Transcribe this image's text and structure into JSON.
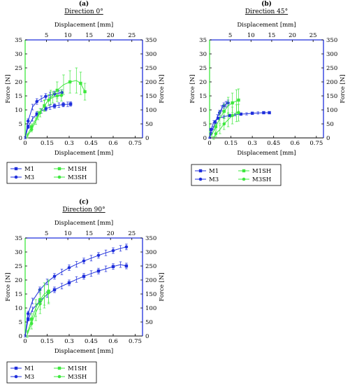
{
  "colors": {
    "blue": "#1f2fdc",
    "green": "#3ee83e"
  },
  "chart_data": [
    {
      "id": "a",
      "panel_letter": "(a)",
      "title": "Direction 0°",
      "type": "line",
      "xlabel": "Displacement [mm]",
      "ylabel": "Force [N]",
      "x2label": "Displacement [mm]",
      "xlim": [
        0,
        0.8
      ],
      "ylim": [
        0,
        35
      ],
      "x2lim": [
        0,
        27.5
      ],
      "y2lim": [
        0,
        350
      ],
      "xticks": [
        "0",
        "0.15",
        "0.3",
        "0.45",
        "0.6",
        "0.75"
      ],
      "yticks": [
        "0",
        "5",
        "10",
        "15",
        "20",
        "25",
        "30",
        "35"
      ],
      "x2ticks": [
        "5",
        "10",
        "15",
        "20",
        "25"
      ],
      "y2ticks": [
        "0",
        "50",
        "100",
        "150",
        "200",
        "250",
        "300",
        "350"
      ],
      "grid": false,
      "right_axis_color": "blue",
      "top_axis_color": "blue",
      "left_axis_color": "green",
      "series": [
        {
          "name": "M1",
          "axis": "primary",
          "color": "blue",
          "marker": "square",
          "x": [
            0,
            0.02,
            0.05,
            0.08,
            0.11,
            0.14,
            0.17,
            0.2,
            0.23,
            0.26,
            0.29,
            0.31
          ],
          "y": [
            0,
            4,
            6.8,
            8.5,
            9.6,
            10.4,
            11,
            11.4,
            11.7,
            11.9,
            12,
            12.1
          ],
          "err": [
            0.3,
            0.6,
            0.8,
            0.8,
            0.8,
            0.8,
            0.8,
            0.8,
            0.8,
            0.8,
            0.8,
            0.8
          ]
        },
        {
          "name": "M3",
          "axis": "primary",
          "color": "blue",
          "marker": "circle",
          "x": [
            0,
            0.02,
            0.05,
            0.08,
            0.11,
            0.14,
            0.17,
            0.2,
            0.23,
            0.25
          ],
          "y": [
            0,
            6,
            11,
            13,
            14,
            14.8,
            15.3,
            15.7,
            16,
            16.2
          ],
          "err": [
            0.3,
            0.8,
            1,
            1,
            1,
            1,
            1,
            1,
            1,
            1
          ]
        },
        {
          "name": "M1SH",
          "axis": "secondary",
          "color": "green",
          "marker": "square",
          "x": [
            0.5,
            1.5,
            3,
            4.5,
            6,
            7.5,
            9,
            10.5,
            12,
            13,
            14
          ],
          "y": [
            10,
            40,
            80,
            115,
            145,
            170,
            190,
            200,
            205,
            195,
            165
          ],
          "err": [
            5,
            10,
            15,
            20,
            25,
            30,
            35,
            40,
            45,
            40,
            30
          ]
        },
        {
          "name": "M3SH",
          "axis": "secondary",
          "color": "green",
          "marker": "circle",
          "x": [
            0.5,
            1.5,
            2.5,
            3.5,
            4.5,
            5.5,
            6.5,
            7.5,
            8.5
          ],
          "y": [
            5,
            30,
            60,
            90,
            115,
            135,
            145,
            150,
            152
          ],
          "err": [
            5,
            8,
            12,
            15,
            18,
            20,
            20,
            20,
            20
          ]
        }
      ],
      "legend": {
        "entries": [
          {
            "name": "M1",
            "color": "blue",
            "marker": "square"
          },
          {
            "name": "M1SH",
            "color": "green",
            "marker": "square"
          },
          {
            "name": "M3",
            "color": "blue",
            "marker": "circle"
          },
          {
            "name": "M3SH",
            "color": "green",
            "marker": "circle"
          }
        ],
        "placement": "below"
      }
    },
    {
      "id": "b",
      "panel_letter": "(b)",
      "title": "Direction 45°",
      "type": "line",
      "xlabel": "Displacement [mm]",
      "ylabel": "Force [N]",
      "x2label": "Displacement [mm]",
      "xlim": [
        0,
        0.8
      ],
      "ylim": [
        0,
        35
      ],
      "x2lim": [
        0,
        27.5
      ],
      "y2lim": [
        0,
        350
      ],
      "xticks": [
        "0",
        "0.15",
        "0.3",
        "0.45",
        "0.6",
        "0.75"
      ],
      "yticks": [
        "0",
        "5",
        "10",
        "15",
        "20",
        "25",
        "30",
        "35"
      ],
      "x2ticks": [
        "5",
        "10",
        "15",
        "20",
        "25"
      ],
      "y2ticks": [
        "0",
        "50",
        "100",
        "150",
        "200",
        "250",
        "300",
        "350"
      ],
      "grid": false,
      "right_axis_color": "blue",
      "top_axis_color": "blue",
      "left_axis_color": "green",
      "series": [
        {
          "name": "M1",
          "axis": "primary",
          "color": "blue",
          "marker": "square",
          "x": [
            0,
            0.01,
            0.03,
            0.06,
            0.1,
            0.14,
            0.18,
            0.22,
            0.26,
            0.3,
            0.34,
            0.38,
            0.42
          ],
          "y": [
            0,
            3,
            5.8,
            7,
            7.6,
            8,
            8.3,
            8.5,
            8.6,
            8.8,
            8.9,
            9,
            9
          ],
          "err": [
            0.2,
            0.3,
            0.4,
            0.4,
            0.4,
            0.4,
            0.4,
            0.4,
            0.4,
            0.4,
            0.4,
            0.4,
            0.4
          ]
        },
        {
          "name": "M3",
          "axis": "primary",
          "color": "blue",
          "marker": "circle",
          "x": [
            0,
            0.01,
            0.025,
            0.04,
            0.055,
            0.07,
            0.085,
            0.1,
            0.115,
            0.13
          ],
          "y": [
            0,
            1.5,
            3.5,
            5.5,
            7.5,
            9,
            10.5,
            11.5,
            12,
            12.5
          ],
          "err": [
            0.2,
            0.3,
            0.5,
            0.6,
            0.8,
            0.9,
            1,
            1,
            1,
            1
          ]
        },
        {
          "name": "M1SH",
          "axis": "secondary",
          "color": "green",
          "marker": "square",
          "x": [
            0.5,
            1.5,
            2.5,
            3.5,
            4.5,
            5.5,
            6.5,
            7
          ],
          "y": [
            10,
            40,
            70,
            95,
            115,
            125,
            132,
            135
          ],
          "err": [
            5,
            10,
            20,
            25,
            30,
            35,
            40,
            40
          ]
        },
        {
          "name": "M3SH",
          "axis": "secondary",
          "color": "green",
          "marker": "circle",
          "x": [
            1,
            1.5,
            2.5,
            3.5,
            4.5,
            5.5,
            6.5,
            7
          ],
          "y": [
            0,
            15,
            30,
            50,
            65,
            80,
            88,
            90
          ],
          "err": [
            5,
            10,
            15,
            20,
            25,
            30,
            30,
            30
          ]
        }
      ],
      "legend": {
        "entries": [
          {
            "name": "M1",
            "color": "blue",
            "marker": "square"
          },
          {
            "name": "M1SH",
            "color": "green",
            "marker": "square"
          },
          {
            "name": "M3",
            "color": "blue",
            "marker": "circle"
          },
          {
            "name": "M3SH",
            "color": "green",
            "marker": "circle"
          }
        ],
        "placement": "below"
      }
    },
    {
      "id": "c",
      "panel_letter": "(c)",
      "title": "Direction 90°",
      "type": "line",
      "xlabel": "Displacement [mm]",
      "ylabel": "Force [N]",
      "x2label": "Displacement [mm]",
      "xlim": [
        0,
        0.8
      ],
      "ylim": [
        0,
        35
      ],
      "x2lim": [
        0,
        27.5
      ],
      "y2lim": [
        0,
        350
      ],
      "xticks": [
        "0",
        "0.15",
        "0.3",
        "0.45",
        "0.6",
        "0.75"
      ],
      "yticks": [
        "0",
        "5",
        "10",
        "15",
        "20",
        "25",
        "30",
        "35"
      ],
      "x2ticks": [
        "5",
        "10",
        "15",
        "20",
        "25"
      ],
      "y2ticks": [
        "0",
        "50",
        "100",
        "150",
        "200",
        "250",
        "300",
        "350"
      ],
      "grid": false,
      "right_axis_color": "blue",
      "top_axis_color": "blue",
      "left_axis_color": "green",
      "series": [
        {
          "name": "M1",
          "axis": "primary",
          "color": "blue",
          "marker": "square",
          "x": [
            0,
            0.02,
            0.05,
            0.1,
            0.15,
            0.2,
            0.25,
            0.3,
            0.35,
            0.4,
            0.45,
            0.5,
            0.55,
            0.6,
            0.65,
            0.69
          ],
          "y": [
            0,
            6,
            9.5,
            12.5,
            14.8,
            16.5,
            17.8,
            19,
            20.2,
            21.3,
            22.3,
            23.2,
            24,
            24.8,
            25.5,
            25
          ],
          "err": [
            0.3,
            0.6,
            0.8,
            0.9,
            1,
            1,
            1,
            1,
            1,
            1,
            1,
            1,
            1,
            1,
            1,
            1
          ]
        },
        {
          "name": "M3",
          "axis": "primary",
          "color": "blue",
          "marker": "circle",
          "x": [
            0,
            0.02,
            0.05,
            0.1,
            0.15,
            0.2,
            0.25,
            0.3,
            0.35,
            0.4,
            0.45,
            0.5,
            0.55,
            0.6,
            0.65,
            0.69
          ],
          "y": [
            0,
            8,
            12.5,
            16.5,
            19.3,
            21.3,
            22.9,
            24.4,
            25.6,
            26.8,
            27.8,
            28.8,
            29.7,
            30.5,
            31.3,
            31.8
          ],
          "err": [
            0.3,
            0.8,
            1,
            1,
            1,
            1,
            1,
            1,
            1,
            1,
            1,
            1,
            1,
            1,
            1,
            1
          ]
        },
        {
          "name": "M1SH",
          "axis": "secondary",
          "color": "green",
          "marker": "square",
          "x": [
            0.5,
            1.5,
            2.5,
            3.5,
            4.5,
            5.5
          ],
          "y": [
            10,
            60,
            100,
            130,
            150,
            160
          ],
          "err": [
            10,
            20,
            30,
            35,
            40,
            40
          ]
        },
        {
          "name": "M3SH",
          "axis": "secondary",
          "color": "green",
          "marker": "circle",
          "x": [
            0.5,
            1.5,
            2.5,
            3.5,
            4.5,
            5.5
          ],
          "y": [
            5,
            45,
            85,
            115,
            140,
            155
          ],
          "err": [
            10,
            20,
            30,
            35,
            40,
            40
          ]
        }
      ],
      "legend": {
        "entries": [
          {
            "name": "M1",
            "color": "blue",
            "marker": "square"
          },
          {
            "name": "M1SH",
            "color": "green",
            "marker": "square"
          },
          {
            "name": "M3",
            "color": "blue",
            "marker": "circle"
          },
          {
            "name": "M3SH",
            "color": "green",
            "marker": "circle"
          }
        ],
        "placement": "below"
      }
    }
  ]
}
